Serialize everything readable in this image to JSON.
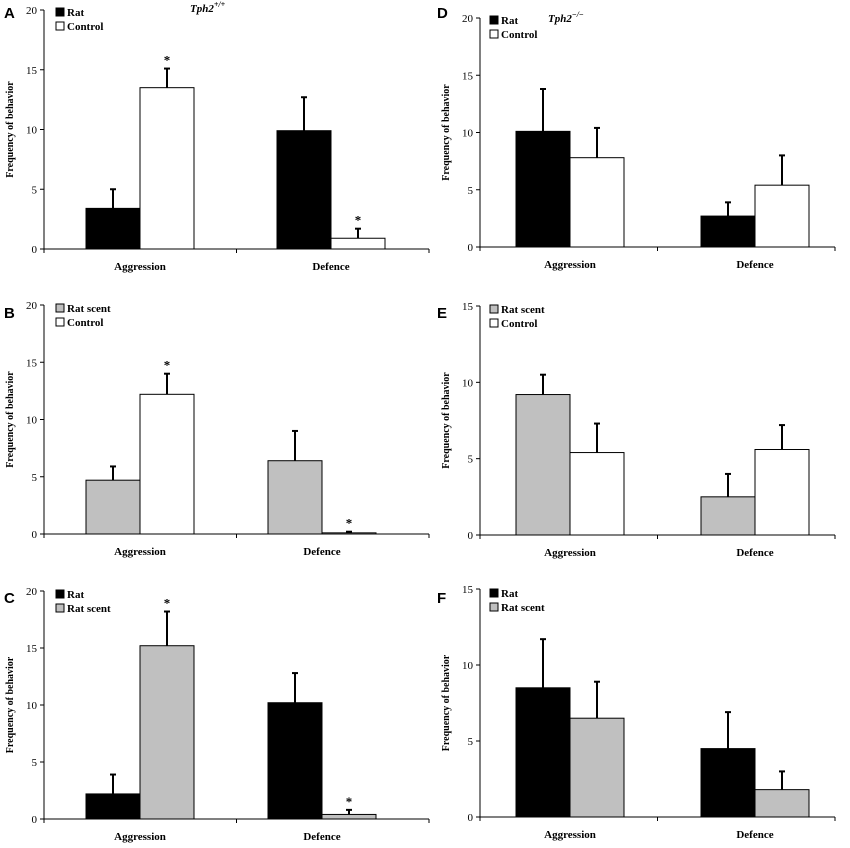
{
  "chart_data": [
    {
      "type": "bar",
      "panel": "A",
      "genotype": "Tph2",
      "genotype_sup": "+/+",
      "categories": [
        "Aggression",
        "Defence"
      ],
      "series": [
        {
          "name": "Rat",
          "color": "#000000",
          "values": [
            3.4,
            9.9
          ],
          "errors": [
            1.6,
            2.8
          ],
          "sig": [
            false,
            false
          ]
        },
        {
          "name": "Control",
          "color": "#ffffff",
          "values": [
            13.5,
            0.9
          ],
          "errors": [
            1.6,
            0.8
          ],
          "sig": [
            true,
            true
          ]
        }
      ],
      "ylabel": "Frequency of behavior",
      "ylim": [
        0,
        20
      ],
      "yticks": [
        0,
        5,
        10,
        15,
        20
      ]
    },
    {
      "type": "bar",
      "panel": "B",
      "categories": [
        "Aggression",
        "Defence"
      ],
      "series": [
        {
          "name": "Rat scent",
          "color": "#c0c0c0",
          "values": [
            4.7,
            6.4
          ],
          "errors": [
            1.2,
            2.6
          ],
          "sig": [
            false,
            false
          ]
        },
        {
          "name": "Control",
          "color": "#ffffff",
          "values": [
            12.2,
            0.1
          ],
          "errors": [
            1.8,
            0.1
          ],
          "sig": [
            true,
            true
          ]
        }
      ],
      "ylabel": "Frequency of behavior",
      "ylim": [
        0,
        20
      ],
      "yticks": [
        0,
        5,
        10,
        15,
        20
      ]
    },
    {
      "type": "bar",
      "panel": "C",
      "categories": [
        "Aggression",
        "Defence"
      ],
      "series": [
        {
          "name": "Rat",
          "color": "#000000",
          "values": [
            2.2,
            10.2
          ],
          "errors": [
            1.7,
            2.6
          ],
          "sig": [
            false,
            false
          ]
        },
        {
          "name": "Rat scent",
          "color": "#c0c0c0",
          "values": [
            15.2,
            0.4
          ],
          "errors": [
            3.0,
            0.4
          ],
          "sig": [
            true,
            true
          ]
        }
      ],
      "ylabel": "Frequency of behavior",
      "ylim": [
        0,
        20
      ],
      "yticks": [
        0,
        5,
        10,
        15,
        20
      ]
    },
    {
      "type": "bar",
      "panel": "D",
      "genotype": "Tph2",
      "genotype_sup": "−/−",
      "categories": [
        "Aggression",
        "Defence"
      ],
      "series": [
        {
          "name": "Rat",
          "color": "#000000",
          "values": [
            10.1,
            2.7
          ],
          "errors": [
            3.7,
            1.2
          ],
          "sig": [
            false,
            false
          ]
        },
        {
          "name": "Control",
          "color": "#ffffff",
          "values": [
            7.8,
            5.4
          ],
          "errors": [
            2.6,
            2.6
          ],
          "sig": [
            false,
            false
          ]
        }
      ],
      "ylabel": "Frequency of behavior",
      "ylim": [
        0,
        20
      ],
      "yticks": [
        0,
        5,
        10,
        15,
        20
      ]
    },
    {
      "type": "bar",
      "panel": "E",
      "categories": [
        "Aggression",
        "Defence"
      ],
      "series": [
        {
          "name": "Rat scent",
          "color": "#c0c0c0",
          "values": [
            9.2,
            2.5
          ],
          "errors": [
            1.3,
            1.5
          ],
          "sig": [
            false,
            false
          ]
        },
        {
          "name": "Control",
          "color": "#ffffff",
          "values": [
            5.4,
            5.6
          ],
          "errors": [
            1.9,
            1.6
          ],
          "sig": [
            false,
            false
          ]
        }
      ],
      "ylabel": "Frequency of behavior",
      "ylim": [
        0,
        15
      ],
      "yticks": [
        0,
        5,
        10,
        15
      ]
    },
    {
      "type": "bar",
      "panel": "F",
      "categories": [
        "Aggression",
        "Defence"
      ],
      "series": [
        {
          "name": "Rat",
          "color": "#000000",
          "values": [
            8.5,
            4.5
          ],
          "errors": [
            3.2,
            2.4
          ],
          "sig": [
            false,
            false
          ]
        },
        {
          "name": "Rat scent",
          "color": "#c0c0c0",
          "values": [
            6.5,
            1.8
          ],
          "errors": [
            2.4,
            1.2
          ],
          "sig": [
            false,
            false
          ]
        }
      ],
      "ylabel": "Frequency of behavior",
      "ylim": [
        0,
        15
      ],
      "yticks": [
        0,
        5,
        10,
        15
      ]
    }
  ]
}
